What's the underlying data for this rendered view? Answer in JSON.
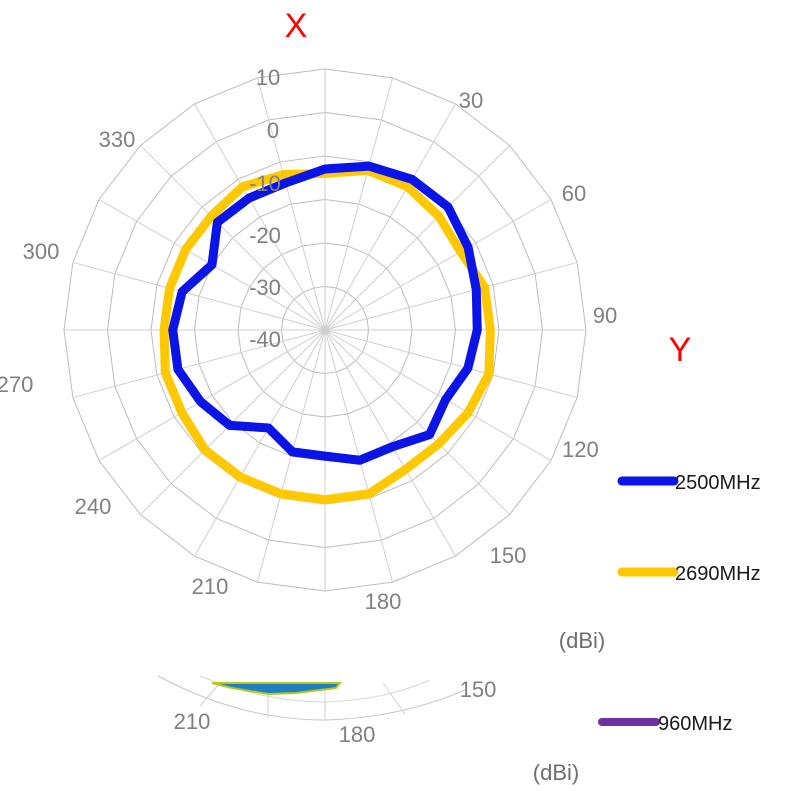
{
  "chart_data": {
    "type": "line",
    "subtype": "polar",
    "axis_titles": {
      "x": "X",
      "y": "Y"
    },
    "radial_ticks": [
      "10",
      "0",
      "-10",
      "-20",
      "-30",
      "-40"
    ],
    "radial_range": [
      -50,
      10
    ],
    "angle_ticks": [
      "30",
      "60",
      "90",
      "120",
      "150",
      "180",
      "210",
      "240",
      "270",
      "300",
      "330"
    ],
    "unit": "(dBi)",
    "grid": true,
    "legend_position": "right",
    "angles_deg": [
      0,
      15,
      30,
      45,
      60,
      75,
      90,
      105,
      120,
      135,
      150,
      165,
      180,
      195,
      210,
      225,
      240,
      255,
      270,
      285,
      300,
      315,
      330,
      345
    ],
    "series": [
      {
        "name": "2500MHz",
        "color": "#0a14e6",
        "values": [
          -13,
          -11,
          -10,
          -10,
          -12,
          -14,
          -15,
          -16,
          -18,
          -16,
          -19,
          -19,
          -21,
          -21,
          -24,
          -19,
          -17,
          -15,
          -15,
          -16,
          -20,
          -15,
          -15,
          -15
        ]
      },
      {
        "name": "2690MHz",
        "color": "#ffc800",
        "values": [
          -14,
          -12,
          -12,
          -13,
          -14,
          -12,
          -12,
          -11,
          -12,
          -13,
          -13,
          -11,
          -11,
          -11,
          -11,
          -11,
          -12,
          -12,
          -13,
          -13,
          -13,
          -13,
          -12,
          -13
        ]
      }
    ],
    "lower_fragment": {
      "angle_labels": [
        "210",
        "180",
        "150"
      ],
      "legend_entry": "960MHz",
      "legend_color": "#7030a0",
      "unit": "(dBi)"
    }
  }
}
